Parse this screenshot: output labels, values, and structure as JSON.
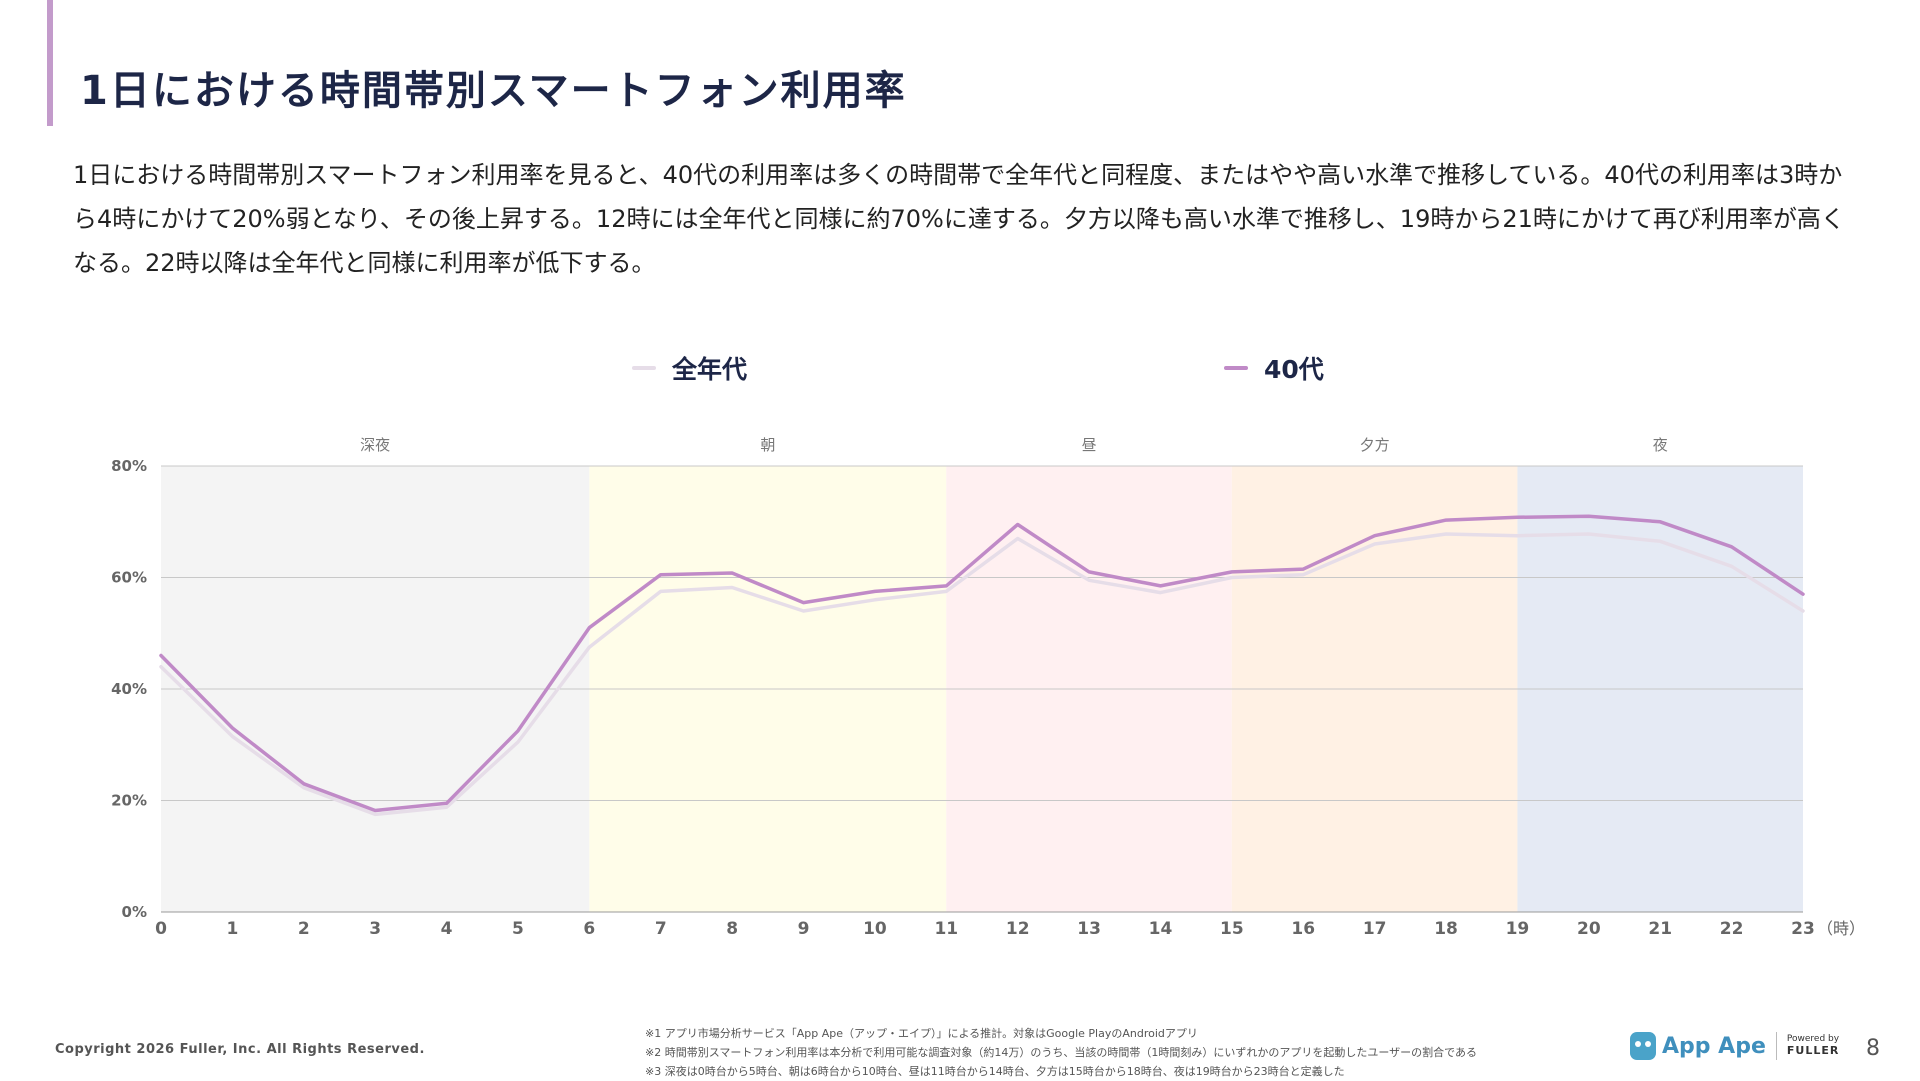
{
  "header": {
    "title": "1日における時間帯別スマートフォン利用率"
  },
  "summary": "1日における時間帯別スマートフォン利用率を見ると、40代の利用率は多くの時間帯で全年代と同程度、またはやや高い水準で推移している。40代の利用率は3時から4時にかけて20%弱となり、その後上昇する。12時には全年代と同様に約70%に達する。夕方以降も高い水準で推移し、19時から21時にかけて再び利用率が高くなる。22時以降は全年代と同様に利用率が低下する。",
  "legend": [
    {
      "label": "全年代",
      "color": "#e6dde8"
    },
    {
      "label": "40代",
      "color": "#c08ac7"
    }
  ],
  "chart_data": {
    "type": "line",
    "x": [
      0,
      1,
      2,
      3,
      4,
      5,
      6,
      7,
      8,
      9,
      10,
      11,
      12,
      13,
      14,
      15,
      16,
      17,
      18,
      19,
      20,
      21,
      22,
      23
    ],
    "x_unit": "（時）",
    "y_ticks": [
      "0%",
      "20%",
      "40%",
      "60%",
      "80%"
    ],
    "ylim": [
      0,
      80
    ],
    "grid": true,
    "legend_position": "top",
    "series": [
      {
        "name": "全年代",
        "color": "#e6dde8",
        "values": [
          44,
          31.5,
          22.3,
          17.5,
          18.8,
          30.5,
          47.5,
          57.5,
          58.2,
          54,
          56,
          57.5,
          67,
          59.5,
          57.3,
          60,
          60.5,
          66,
          67.8,
          67.5,
          67.8,
          66.5,
          62,
          54
        ]
      },
      {
        "name": "40代",
        "color": "#c08ac7",
        "values": [
          46,
          33,
          23,
          18.2,
          19.5,
          32.5,
          51,
          60.5,
          60.8,
          55.5,
          57.5,
          58.5,
          69.5,
          61,
          58.5,
          61,
          61.5,
          67.5,
          70.3,
          70.8,
          71,
          70,
          65.5,
          57
        ]
      }
    ],
    "bands": [
      {
        "label": "深夜",
        "from": 0,
        "to": 6,
        "color": "#f4f4f4"
      },
      {
        "label": "朝",
        "from": 6,
        "to": 11,
        "color": "#fffde9"
      },
      {
        "label": "昼",
        "from": 11,
        "to": 15,
        "color": "#fff0f1"
      },
      {
        "label": "夕方",
        "from": 15,
        "to": 19,
        "color": "#fff1e4"
      },
      {
        "label": "夜",
        "from": 19,
        "to": 23,
        "color": "#e5eaf4"
      }
    ]
  },
  "footer": {
    "copyright": "Copyright 2026 Fuller, Inc. All Rights Reserved.",
    "notes": [
      "※1 アプリ市場分析サービス「App Ape（アップ・エイプ）」による推計。対象はGoogle PlayのAndroidアプリ",
      "※2 時間帯別スマートフォン利用率は本分析で利用可能な調査対象（約14万）のうち、当該の時間帯（1時間刻み）にいずれかのアプリを起動したユーザーの割合である",
      "※3 深夜は0時台から5時台、朝は6時台から10時台、昼は11時台から14時台、夕方は15時台から18時台、夜は19時台から23時台と定義した"
    ],
    "logo_text": "App Ape",
    "powered_by": "Powered by",
    "fuller": "FULLER",
    "page_number": "8"
  }
}
